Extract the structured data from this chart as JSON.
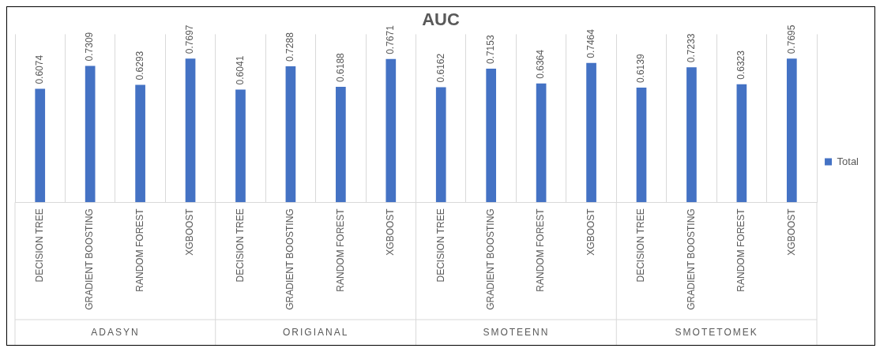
{
  "chart_data": {
    "type": "bar",
    "title": "AUC",
    "categories": [
      "DECISION TREE",
      "GRADIENT BOOSTING",
      "RANDOM FOREST",
      "XGBOOST",
      "DECISION TREE",
      "GRADIENT BOOSTING",
      "RANDOM FOREST",
      "XGBOOST",
      "DECISION TREE",
      "GRADIENT BOOSTING",
      "RANDOM FOREST",
      "XGBOOST",
      "DECISION TREE",
      "GRADIENT BOOSTING",
      "RANDOM FOREST",
      "XGBOOST"
    ],
    "series": [
      {
        "name": "Total",
        "color": "#4472c4",
        "values": [
          0.6074,
          0.7309,
          0.6293,
          0.7697,
          0.6041,
          0.7288,
          0.6188,
          0.7671,
          0.6162,
          0.7153,
          0.6364,
          0.7464,
          0.6139,
          0.7233,
          0.6323,
          0.7695
        ]
      }
    ],
    "annotations": [
      "ADASYN",
      "ORIGIANAL",
      "SMOTEENN",
      "SMOTETOMEK"
    ],
    "ylim": [
      0,
      0.9
    ],
    "tick_labels": "x",
    "grid": "x",
    "legend": "right",
    "data_labels": true
  }
}
